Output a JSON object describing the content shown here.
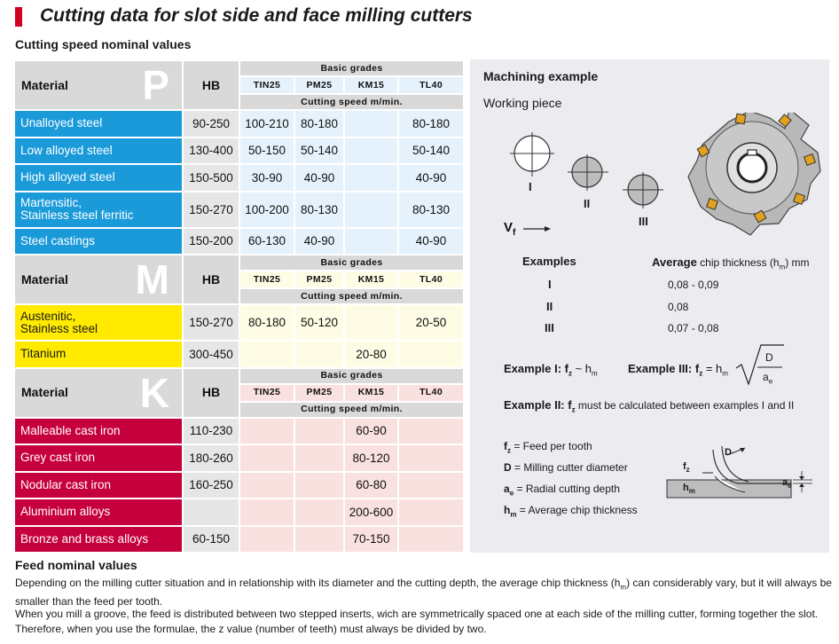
{
  "title": "Cutting data for slot side and face milling cutters",
  "subtitle": "Cutting speed nominal values",
  "table": {
    "material_label": "Material",
    "hb_label": "HB",
    "basic_grades_label": "Basic grades",
    "cutting_speed_label": "Cutting speed m/min.",
    "grades": [
      "TIN25",
      "PM25",
      "KM15",
      "TL40"
    ],
    "sections": [
      {
        "letter": "P",
        "color": "#1a9ad9",
        "rows": [
          {
            "material": "Unalloyed steel",
            "hb": "90-250",
            "tin25": "100-210",
            "pm25": "80-180",
            "km15": "",
            "tl40": "80-180"
          },
          {
            "material": "Low alloyed steel",
            "hb": "130-400",
            "tin25": "50-150",
            "pm25": "50-140",
            "km15": "",
            "tl40": "50-140"
          },
          {
            "material": "High alloyed steel",
            "hb": "150-500",
            "tin25": "30-90",
            "pm25": "40-90",
            "km15": "",
            "tl40": "40-90"
          },
          {
            "material_line1": "Martensitic,",
            "material_line2": "Stainless steel ferritic",
            "hb": "150-270",
            "tin25": "100-200",
            "pm25": "80-130",
            "km15": "",
            "tl40": "80-130"
          },
          {
            "material": "Steel castings",
            "hb": "150-200",
            "tin25": "60-130",
            "pm25": "40-90",
            "km15": "",
            "tl40": "40-90"
          }
        ]
      },
      {
        "letter": "M",
        "color": "#ffea00",
        "rows": [
          {
            "material_line1": "Austenitic,",
            "material_line2": "Stainless steel",
            "hb": "150-270",
            "tin25": "80-180",
            "pm25": "50-120",
            "km15": "",
            "tl40": "20-50"
          },
          {
            "material": "Titanium",
            "hb": "300-450",
            "tin25": "",
            "pm25": "",
            "km15": "20-80",
            "tl40": ""
          }
        ]
      },
      {
        "letter": "K",
        "color": "#c6003d",
        "rows": [
          {
            "material": "Malleable cast iron",
            "hb": "110-230",
            "tin25": "",
            "pm25": "",
            "km15": "60-90",
            "tl40": ""
          },
          {
            "material": "Grey cast iron",
            "hb": "180-260",
            "tin25": "",
            "pm25": "",
            "km15": "80-120",
            "tl40": ""
          },
          {
            "material": "Nodular cast iron",
            "hb": "160-250",
            "tin25": "",
            "pm25": "",
            "km15": "60-80",
            "tl40": ""
          },
          {
            "material": "Aluminium alloys",
            "hb": "",
            "tin25": "",
            "pm25": "",
            "km15": "200-600",
            "tl40": ""
          },
          {
            "material": "Bronze and brass alloys",
            "hb": "60-150",
            "tin25": "",
            "pm25": "",
            "km15": "70-150",
            "tl40": ""
          }
        ]
      }
    ]
  },
  "panel": {
    "title": "Machining example",
    "working_piece": "Working piece",
    "roman": [
      "I",
      "II",
      "III"
    ],
    "vf": "V",
    "vf_sub": "f",
    "examples_label": "Examples",
    "avg_label_bold": "Average",
    "avg_label_rest": "chip thickness (h",
    "avg_sub": "m",
    "avg_unit": ") mm",
    "examples": [
      {
        "id": "I",
        "value": "0,08 - 0,09"
      },
      {
        "id": "II",
        "value": "0,08"
      },
      {
        "id": "III",
        "value": "0,07 - 0,08"
      }
    ],
    "ex1_label": "Example I: f",
    "ex1_sub": "z",
    "ex1_rest": " ~ h",
    "ex1_sub2": "m",
    "ex3_label": "Example III: f",
    "ex3_sub": "z",
    "ex3_rest": " = h",
    "ex3_sub2": "m",
    "frac_num": "D",
    "frac_den": "a",
    "frac_den_sub": "e",
    "ex2_label": "Example II: f",
    "ex2_sub": "z",
    "ex2_rest": " must be calculated between examples I and II",
    "legend": [
      {
        "sym": "f",
        "sub": "z",
        "text": " = Feed per tooth"
      },
      {
        "sym": "D",
        "sub": "",
        "text": " = Milling cutter diameter"
      },
      {
        "sym": "a",
        "sub": "e",
        "text": " = Radial cutting depth"
      },
      {
        "sym": "h",
        "sub": "m",
        "text": " = Average chip thickness"
      }
    ],
    "diag_fz": "f",
    "diag_fz_sub": "z",
    "diag_d": "D",
    "diag_hm": "h",
    "diag_hm_sub": "m",
    "diag_ae": "a",
    "diag_ae_sub": "e"
  },
  "feed": {
    "title": "Feed nominal values",
    "p1_a": "Depending on the milling cutter situation and in relationship with its diameter and the cutting depth, the average chip thickness (h",
    "p1_sub": "m",
    "p1_b": ") can considerably vary, but it will always be smaller than the feed per tooth.",
    "p2": "When you mill a groove, the feed is distributed between two stepped inserts, wich are symmetrically spaced one at each side of the milling cutter, forming together the slot. Therefore, when you use the formulae, the z value (number of teeth) must always be divided by two."
  }
}
